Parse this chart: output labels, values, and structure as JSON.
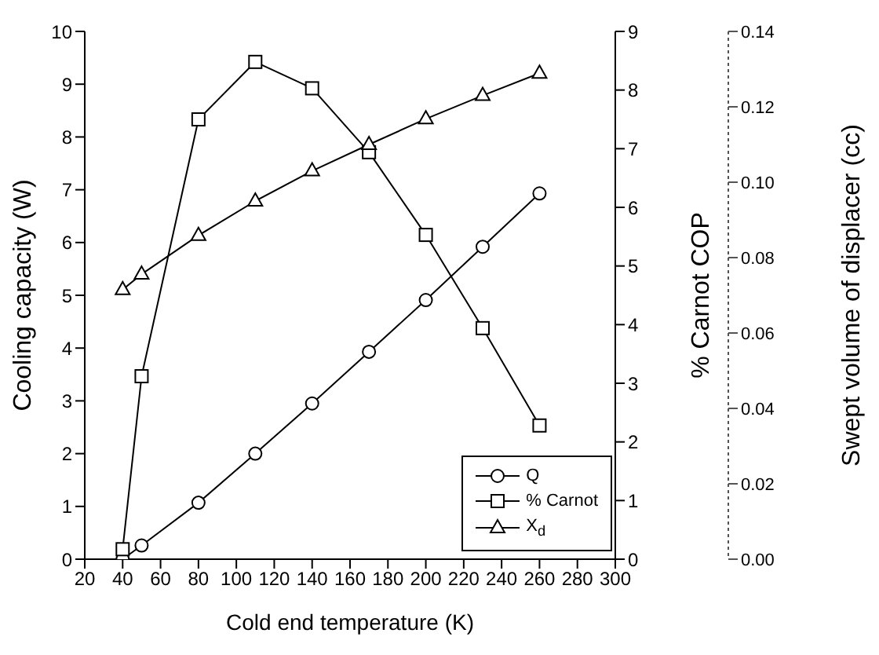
{
  "chart_data": {
    "type": "line",
    "xlabel": "Cold end temperature (K)",
    "ylabel": "Cooling capacity (W)",
    "y2label": "% Carnot COP",
    "y3label": "Swept volume of displacer (cc)",
    "x": [
      40,
      50,
      80,
      110,
      140,
      170,
      200,
      230,
      260
    ],
    "series": [
      {
        "name": "Q",
        "color": "#000000",
        "marker": "circle",
        "values": [
          0,
          0.26,
          1.07,
          2.0,
          2.95,
          3.93,
          4.91,
          5.92,
          6.93
        ]
      },
      {
        "name": "% Carnot",
        "color": "#000000",
        "marker": "square",
        "axis": "y2",
        "values": [
          0.17,
          3.12,
          7.5,
          8.48,
          8.03,
          6.94,
          5.53,
          3.94,
          2.28
        ]
      },
      {
        "name": "X$_{d}$",
        "color": "#000000",
        "marker": "triangle",
        "axis": "y3",
        "values": [
          0.0715,
          0.0756,
          0.0859,
          0.095,
          0.103,
          0.11,
          0.1168,
          0.123,
          0.1289
        ]
      }
    ],
    "xlim": [
      20,
      300
    ],
    "xticks": [
      20,
      40,
      60,
      80,
      100,
      120,
      140,
      160,
      180,
      200,
      220,
      240,
      260,
      280,
      300
    ],
    "ylim": [
      0,
      10
    ],
    "yticks": [
      0,
      1,
      2,
      3,
      4,
      5,
      6,
      7,
      8,
      9,
      10
    ],
    "y2lim": [
      0,
      9
    ],
    "y2ticks": [
      0,
      1,
      2,
      3,
      4,
      5,
      6,
      7,
      8,
      9
    ],
    "y3lim": [
      0,
      0.14
    ],
    "y3ticks": [
      {
        "value": 0,
        "label": "0.00"
      },
      0.02,
      0.04,
      0.06,
      0.08,
      {
        "value": 0.1,
        "label": "0.10"
      },
      0.12,
      0.14
    ],
    "grid": false,
    "legend": "bottom right",
    "line_style": "solid"
  }
}
